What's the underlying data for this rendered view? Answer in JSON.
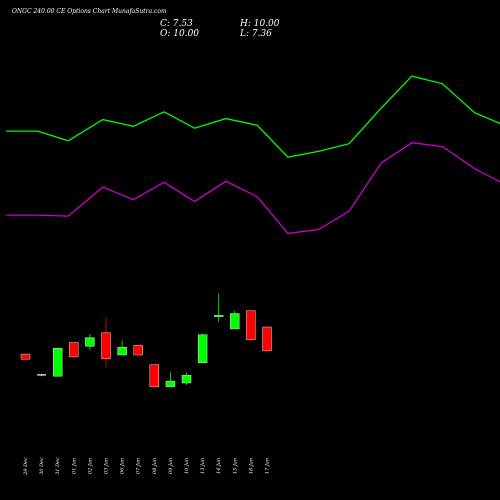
{
  "header": {
    "title": "ONGC 240.00 CE Options Chart MunafaSutra.com",
    "close_label": "C: 7.53",
    "high_label": "H: 10.00",
    "open_label": "O: 10.00",
    "low_label": "L: 7.36"
  },
  "colors": {
    "background": "#000000",
    "up": "#00ff00",
    "down": "#ff0000",
    "band_upper": "#00ff00",
    "band_lower": "#cc00cc",
    "text": "#ffffff"
  },
  "chart_data": {
    "type": "candlestick",
    "title": "ONGC 240.00 CE Options Chart MunafaSutra.com",
    "categories": [
      "29 Dec",
      "30 Dec",
      "31 Dec",
      "01 Jan",
      "02 Jan",
      "03 Jan",
      "06 Jan",
      "07 Jan",
      "08 Jan",
      "09 Jan",
      "10 Jan",
      "13 Jan",
      "14 Jan",
      "15 Jan",
      "16 Jan",
      "17 Jan"
    ],
    "candles": [
      {
        "o": 7.2,
        "h": 7.2,
        "l": 6.67,
        "c": 6.67,
        "dir": "down"
      },
      {
        "o": 5.1,
        "h": 5.1,
        "l": 4.9,
        "c": 5.0,
        "dir": "flat"
      },
      {
        "o": 4.9,
        "h": 7.8,
        "l": 4.9,
        "c": 7.8,
        "dir": "up"
      },
      {
        "o": 8.4,
        "h": 8.4,
        "l": 6.9,
        "c": 6.9,
        "dir": "down"
      },
      {
        "o": 8.0,
        "h": 9.3,
        "l": 7.6,
        "c": 8.9,
        "dir": "up"
      },
      {
        "o": 9.4,
        "h": 11.0,
        "l": 5.8,
        "c": 6.7,
        "dir": "down"
      },
      {
        "o": 7.1,
        "h": 8.6,
        "l": 7.1,
        "c": 7.9,
        "dir": "up"
      },
      {
        "o": 8.1,
        "h": 8.1,
        "l": 7.1,
        "c": 7.1,
        "dir": "down"
      },
      {
        "o": 6.1,
        "h": 6.1,
        "l": 3.8,
        "c": 3.8,
        "dir": "down"
      },
      {
        "o": 3.8,
        "h": 5.3,
        "l": 3.8,
        "c": 4.4,
        "dir": "up"
      },
      {
        "o": 4.2,
        "h": 5.3,
        "l": 4.0,
        "c": 5.0,
        "dir": "up"
      },
      {
        "o": 6.3,
        "h": 9.3,
        "l": 6.3,
        "c": 9.2,
        "dir": "up"
      },
      {
        "o": 11.2,
        "h": 13.5,
        "l": 10.5,
        "c": 11.2,
        "dir": "up"
      },
      {
        "o": 9.8,
        "h": 11.7,
        "l": 9.8,
        "c": 11.4,
        "dir": "up"
      },
      {
        "o": 11.7,
        "h": 11.7,
        "l": 8.7,
        "c": 8.7,
        "dir": "down"
      },
      {
        "o": 10.0,
        "h": 10.0,
        "l": 7.36,
        "c": 7.53,
        "dir": "down"
      }
    ],
    "upper_band": {
      "x_positions": [
        -1.2,
        0.75,
        2.65,
        4.8,
        6.7,
        8.6,
        10.5,
        12.45,
        14.4,
        16.3,
        18.2,
        20.1,
        22.1,
        24.0,
        25.9,
        27.9,
        29.9,
        31.8
      ],
      "values": [
        30.3,
        30.3,
        29.3,
        31.5,
        30.8,
        32.3,
        30.6,
        31.6,
        30.9,
        27.6,
        28.2,
        29.0,
        32.7,
        36.0,
        35.2,
        32.2,
        30.8,
        30.8
      ]
    },
    "lower_band": {
      "x_positions": [
        -1.2,
        0.75,
        2.65,
        4.8,
        6.7,
        8.6,
        10.5,
        12.45,
        14.4,
        16.3,
        18.2,
        20.1,
        22.1,
        24.0,
        25.9,
        27.9,
        29.9,
        31.8
      ],
      "values": [
        21.6,
        21.6,
        21.5,
        24.5,
        23.2,
        25.0,
        23.0,
        25.1,
        23.5,
        19.7,
        20.1,
        22.0,
        27.0,
        29.1,
        28.7,
        26.4,
        24.7,
        24.7
      ]
    },
    "grid": false
  }
}
